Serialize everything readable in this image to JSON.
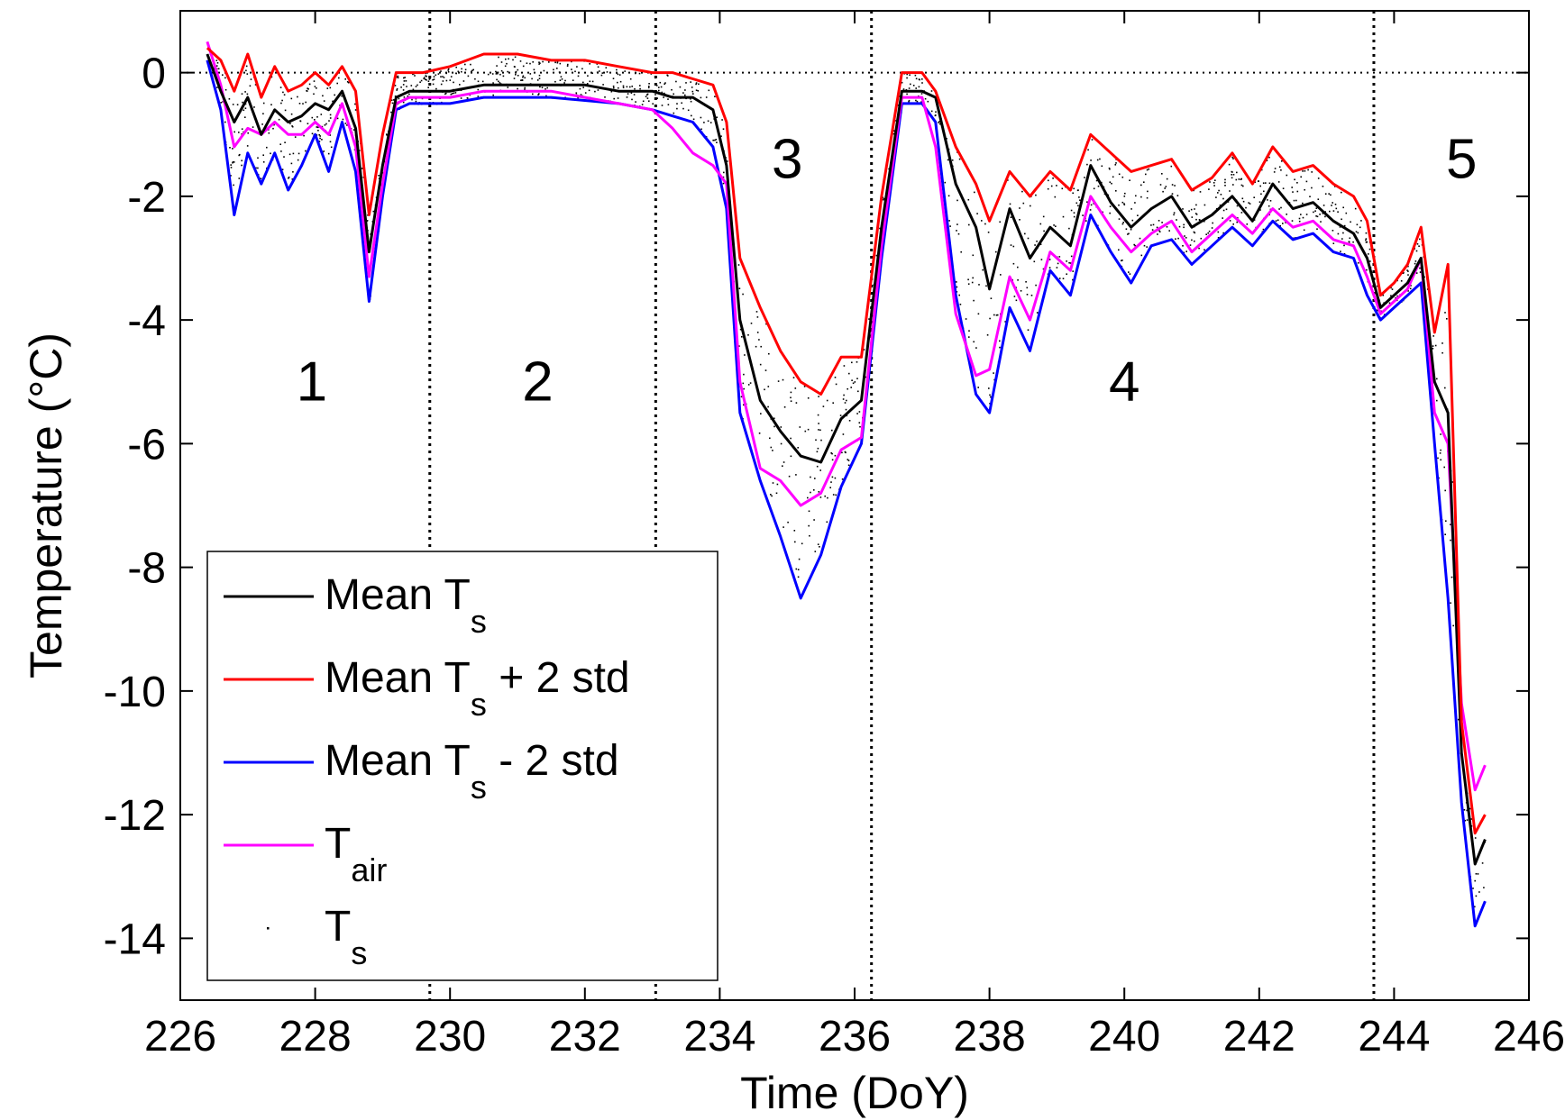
{
  "chart_data": {
    "type": "line",
    "xlabel": "Time (DoY)",
    "ylabel": "Temperature (°C)",
    "xlim": [
      226,
      246
    ],
    "ylim": [
      -15,
      1
    ],
    "x_ticks": [
      "226",
      "228",
      "230",
      "232",
      "234",
      "236",
      "238",
      "240",
      "242",
      "244",
      "246"
    ],
    "y_ticks": [
      "0",
      "-2",
      "-4",
      "-6",
      "-8",
      "-10",
      "-12",
      "-14"
    ],
    "reference_line_y": 0,
    "period_boundaries": [
      229.7,
      233.05,
      236.25,
      243.7
    ],
    "period_labels": [
      {
        "text": "1",
        "x": 227.95,
        "y": -5.3
      },
      {
        "text": "2",
        "x": 231.3,
        "y": -5.3
      },
      {
        "text": "3",
        "x": 235.0,
        "y": -1.7
      },
      {
        "text": "4",
        "x": 240.0,
        "y": -5.3
      },
      {
        "text": "5",
        "x": 245.0,
        "y": -1.7
      }
    ],
    "legend": {
      "position": "lower-left",
      "entries": [
        {
          "main": "Mean T",
          "sub": "s",
          "suffix": "",
          "color": "#000000",
          "marker": "line"
        },
        {
          "main": "Mean T",
          "sub": "s",
          "suffix": " + 2 std",
          "color": "#ff0000",
          "marker": "line"
        },
        {
          "main": "Mean T",
          "sub": "s",
          "suffix": " - 2 std",
          "color": "#0000ff",
          "marker": "line"
        },
        {
          "main": "T",
          "sub": "air",
          "suffix": "",
          "color": "#ff00ff",
          "marker": "line"
        },
        {
          "main": "T",
          "sub": "s",
          "suffix": "",
          "color": "#000000",
          "marker": "dot"
        }
      ]
    },
    "series": [
      {
        "color": "#000000",
        "x": [
          226.4,
          226.6,
          226.8,
          227.0,
          227.2,
          227.4,
          227.6,
          227.8,
          228.0,
          228.2,
          228.4,
          228.6,
          228.8,
          229.0,
          229.2,
          229.4,
          229.6,
          229.8,
          230.0,
          230.5,
          231.0,
          231.5,
          232.0,
          232.5,
          233.0,
          233.3,
          233.6,
          233.9,
          234.1,
          234.3,
          234.6,
          234.9,
          235.2,
          235.5,
          235.8,
          236.1,
          236.4,
          236.7,
          237.0,
          237.2,
          237.5,
          237.8,
          238.0,
          238.3,
          238.6,
          238.9,
          239.2,
          239.5,
          239.8,
          240.1,
          240.4,
          240.7,
          241.0,
          241.3,
          241.6,
          241.9,
          242.2,
          242.5,
          242.8,
          243.1,
          243.4,
          243.6,
          243.8,
          244.0,
          244.2,
          244.4,
          244.6,
          244.8,
          245.0,
          245.2,
          245.35
        ],
        "y": [
          0.3,
          -0.3,
          -0.8,
          -0.4,
          -1.0,
          -0.6,
          -0.8,
          -0.7,
          -0.5,
          -0.6,
          -0.3,
          -0.9,
          -2.9,
          -1.5,
          -0.4,
          -0.3,
          -0.3,
          -0.3,
          -0.3,
          -0.2,
          -0.2,
          -0.2,
          -0.2,
          -0.3,
          -0.3,
          -0.4,
          -0.4,
          -0.6,
          -1.5,
          -4.0,
          -5.3,
          -5.8,
          -6.2,
          -6.3,
          -5.6,
          -5.3,
          -2.5,
          -0.3,
          -0.3,
          -0.4,
          -1.8,
          -2.5,
          -3.5,
          -2.2,
          -3.0,
          -2.5,
          -2.8,
          -1.5,
          -2.1,
          -2.5,
          -2.2,
          -2.0,
          -2.5,
          -2.3,
          -2.0,
          -2.4,
          -1.8,
          -2.2,
          -2.1,
          -2.4,
          -2.6,
          -3.0,
          -3.8,
          -3.6,
          -3.4,
          -3.0,
          -5.0,
          -5.5,
          -11.0,
          -12.8,
          -12.4
        ]
      },
      {
        "color": "#ff0000",
        "x": [
          226.4,
          226.6,
          226.8,
          227.0,
          227.2,
          227.4,
          227.6,
          227.8,
          228.0,
          228.2,
          228.4,
          228.6,
          228.8,
          229.0,
          229.2,
          229.4,
          229.6,
          229.8,
          230.0,
          230.5,
          231.0,
          231.5,
          232.0,
          232.5,
          233.0,
          233.3,
          233.6,
          233.9,
          234.1,
          234.3,
          234.6,
          234.9,
          235.2,
          235.5,
          235.8,
          236.1,
          236.4,
          236.7,
          237.0,
          237.2,
          237.5,
          237.8,
          238.0,
          238.3,
          238.6,
          238.9,
          239.2,
          239.5,
          239.8,
          240.1,
          240.4,
          240.7,
          241.0,
          241.3,
          241.6,
          241.9,
          242.2,
          242.5,
          242.8,
          243.1,
          243.4,
          243.6,
          243.8,
          244.0,
          244.2,
          244.4,
          244.6,
          244.8,
          245.0,
          245.2,
          245.35
        ],
        "y": [
          0.4,
          0.2,
          -0.3,
          0.3,
          -0.4,
          0.1,
          -0.3,
          -0.2,
          0.0,
          -0.2,
          0.1,
          -0.3,
          -2.3,
          -1.0,
          0.0,
          0.0,
          0.0,
          0.05,
          0.1,
          0.3,
          0.3,
          0.2,
          0.2,
          0.1,
          0.0,
          0.0,
          -0.1,
          -0.2,
          -0.8,
          -3.0,
          -3.8,
          -4.5,
          -5.0,
          -5.2,
          -4.6,
          -4.6,
          -2.0,
          0.0,
          0.0,
          -0.3,
          -1.2,
          -1.8,
          -2.4,
          -1.6,
          -2.0,
          -1.6,
          -1.9,
          -1.0,
          -1.3,
          -1.6,
          -1.5,
          -1.4,
          -1.9,
          -1.7,
          -1.3,
          -1.8,
          -1.2,
          -1.6,
          -1.5,
          -1.8,
          -2.0,
          -2.4,
          -3.6,
          -3.4,
          -3.1,
          -2.5,
          -4.2,
          -3.1,
          -10.5,
          -12.3,
          -12.0
        ]
      },
      {
        "color": "#0000ff",
        "x": [
          226.4,
          226.6,
          226.8,
          227.0,
          227.2,
          227.4,
          227.6,
          227.8,
          228.0,
          228.2,
          228.4,
          228.6,
          228.8,
          229.0,
          229.2,
          229.4,
          229.6,
          229.8,
          230.0,
          230.5,
          231.0,
          231.5,
          232.0,
          232.5,
          233.0,
          233.3,
          233.6,
          233.9,
          234.1,
          234.3,
          234.6,
          234.9,
          235.2,
          235.5,
          235.8,
          236.1,
          236.4,
          236.7,
          237.0,
          237.2,
          237.5,
          237.8,
          238.0,
          238.3,
          238.6,
          238.9,
          239.2,
          239.5,
          239.8,
          240.1,
          240.4,
          240.7,
          241.0,
          241.3,
          241.6,
          241.9,
          242.2,
          242.5,
          242.8,
          243.1,
          243.4,
          243.6,
          243.8,
          244.0,
          244.2,
          244.4,
          244.6,
          244.8,
          245.0,
          245.2,
          245.35
        ],
        "y": [
          0.2,
          -0.6,
          -2.3,
          -1.3,
          -1.8,
          -1.3,
          -1.9,
          -1.5,
          -1.0,
          -1.6,
          -0.8,
          -1.6,
          -3.7,
          -2.0,
          -0.6,
          -0.5,
          -0.5,
          -0.5,
          -0.5,
          -0.4,
          -0.4,
          -0.4,
          -0.45,
          -0.5,
          -0.6,
          -0.7,
          -0.8,
          -1.2,
          -2.2,
          -5.5,
          -6.6,
          -7.5,
          -8.5,
          -7.8,
          -6.7,
          -6.0,
          -3.0,
          -0.5,
          -0.5,
          -0.8,
          -3.6,
          -5.2,
          -5.5,
          -3.8,
          -4.5,
          -3.2,
          -3.6,
          -2.3,
          -2.9,
          -3.4,
          -2.8,
          -2.7,
          -3.1,
          -2.8,
          -2.5,
          -2.8,
          -2.4,
          -2.7,
          -2.6,
          -2.9,
          -3.0,
          -3.6,
          -4.0,
          -3.8,
          -3.6,
          -3.4,
          -6.0,
          -8.5,
          -11.8,
          -13.8,
          -13.4
        ]
      },
      {
        "color": "#ff00ff",
        "x": [
          226.4,
          226.6,
          226.8,
          227.0,
          227.2,
          227.4,
          227.6,
          227.8,
          228.0,
          228.2,
          228.4,
          228.6,
          228.8,
          229.0,
          229.2,
          229.4,
          229.6,
          229.8,
          230.0,
          230.5,
          231.0,
          231.5,
          232.0,
          232.5,
          233.0,
          233.3,
          233.6,
          233.9,
          234.1,
          234.3,
          234.6,
          234.9,
          235.2,
          235.5,
          235.8,
          236.1,
          236.4,
          236.7,
          237.0,
          237.2,
          237.5,
          237.8,
          238.0,
          238.3,
          238.6,
          238.9,
          239.2,
          239.5,
          239.8,
          240.1,
          240.4,
          240.7,
          241.0,
          241.3,
          241.6,
          241.9,
          242.2,
          242.5,
          242.8,
          243.1,
          243.4,
          243.6,
          243.8,
          244.0,
          244.2,
          244.4,
          244.6,
          244.8,
          245.0,
          245.2,
          245.35
        ],
        "y": [
          0.5,
          -0.2,
          -1.2,
          -0.9,
          -1.0,
          -0.8,
          -1.0,
          -1.0,
          -0.8,
          -1.0,
          -0.5,
          -1.2,
          -3.3,
          -1.8,
          -0.5,
          -0.4,
          -0.4,
          -0.4,
          -0.4,
          -0.3,
          -0.3,
          -0.3,
          -0.4,
          -0.5,
          -0.6,
          -0.9,
          -1.3,
          -1.5,
          -1.8,
          -5.0,
          -6.4,
          -6.6,
          -7.0,
          -6.8,
          -6.1,
          -5.9,
          -2.8,
          -0.4,
          -0.4,
          -1.2,
          -3.9,
          -4.9,
          -4.8,
          -3.3,
          -4.0,
          -2.9,
          -3.2,
          -2.0,
          -2.5,
          -2.9,
          -2.6,
          -2.4,
          -2.9,
          -2.6,
          -2.3,
          -2.6,
          -2.2,
          -2.5,
          -2.4,
          -2.7,
          -2.8,
          -3.3,
          -3.9,
          -3.7,
          -3.5,
          -3.0,
          -5.5,
          -6.0,
          -10.2,
          -11.6,
          -11.2
        ]
      }
    ]
  }
}
